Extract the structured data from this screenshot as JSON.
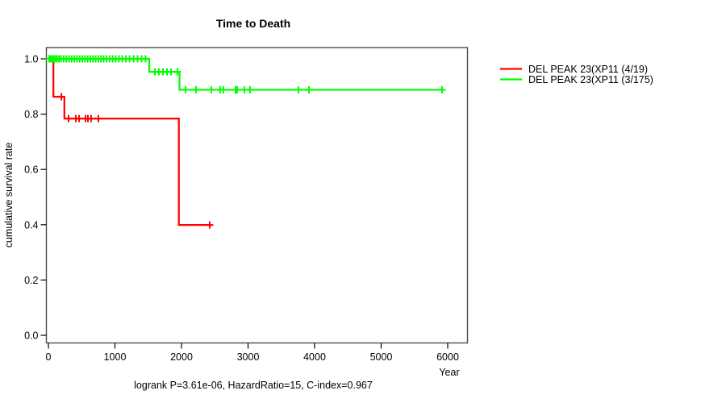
{
  "chart_data": {
    "type": "line",
    "subtype": "kaplan-meier-survival-step",
    "title": "Time to Death",
    "xlabel": "Year",
    "ylabel": "cumulative survival rate",
    "footnote": "logrank P=3.61e-06, HazardRatio=15, C-index=0.967",
    "grid": false,
    "legend_position": "right-outside",
    "xlim": [
      0,
      6000
    ],
    "ylim": [
      0.0,
      1.0
    ],
    "x_axis": {
      "ticks": [
        {
          "v": 0,
          "label": "0"
        },
        {
          "v": 1000,
          "label": "1000"
        },
        {
          "v": 2000,
          "label": "2000"
        },
        {
          "v": 3000,
          "label": "3000"
        },
        {
          "v": 4000,
          "label": "4000"
        },
        {
          "v": 5000,
          "label": "5000"
        },
        {
          "v": 6000,
          "label": "6000"
        }
      ]
    },
    "y_axis": {
      "ticks": [
        {
          "v": 0.0,
          "label": "0.0"
        },
        {
          "v": 0.2,
          "label": "0.2"
        },
        {
          "v": 0.4,
          "label": "0.4"
        },
        {
          "v": 0.6,
          "label": "0.6"
        },
        {
          "v": 0.8,
          "label": "0.8"
        },
        {
          "v": 1.0,
          "label": "1.0"
        }
      ]
    },
    "series": [
      {
        "name": "DEL PEAK 23(XP11 (4/19)",
        "color": "#ff0000",
        "steps": [
          [
            0,
            1.0
          ],
          [
            75,
            0.863
          ],
          [
            240,
            0.784
          ],
          [
            1960,
            0.399
          ]
        ],
        "end": 2448,
        "censors": [
          195,
          303,
          412,
          461,
          558,
          594,
          642,
          751,
          2424
        ]
      },
      {
        "name": "DEL PEAK 23(XP11 (3/175)",
        "color": "#00ff00",
        "steps": [
          [
            0,
            1.0
          ],
          [
            1515,
            0.953
          ],
          [
            1970,
            0.888
          ]
        ],
        "end": 5939,
        "censors": [
          10,
          30,
          55,
          80,
          105,
          130,
          160,
          190,
          230,
          270,
          310,
          350,
          390,
          430,
          470,
          510,
          550,
          590,
          630,
          670,
          710,
          750,
          790,
          830,
          875,
          920,
          965,
          1010,
          1060,
          1110,
          1165,
          1220,
          1280,
          1340,
          1400,
          1460,
          1600,
          1660,
          1721,
          1782,
          1842,
          1939,
          2060,
          2218,
          2448,
          2582,
          2630,
          2812,
          2836,
          2945,
          3030,
          3758,
          3915,
          5915
        ]
      }
    ]
  }
}
